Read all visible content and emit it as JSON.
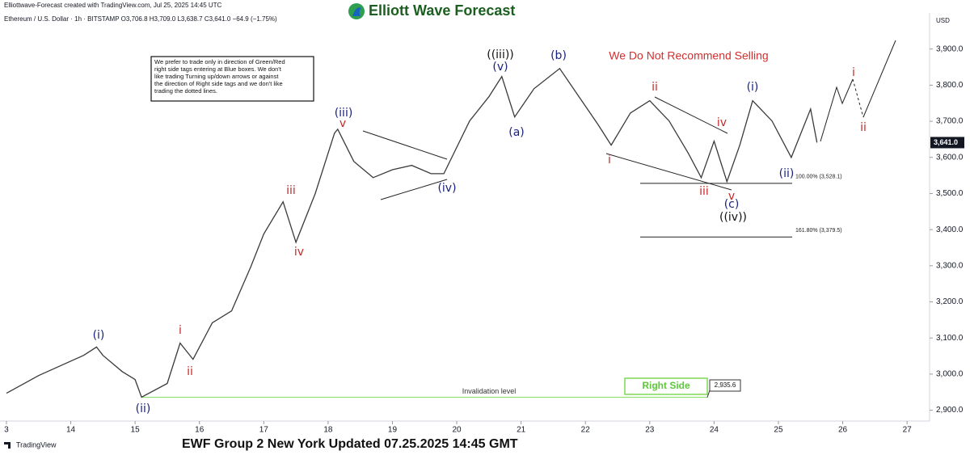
{
  "header": {
    "credit": "Elliottwave-Forecast created with TradingView.com, Jul 25, 2025 14:45 UTC",
    "symbol": "Ethereum / U.S. Dollar · 1h · BITSTAMP  O3,706.8 H3,709.0 L3,638.7 C3,641.0 −64.9 (−1.75%)",
    "logo": "Elliott Wave Forecast"
  },
  "note": [
    "We prefer to trade only in direction of Green/Red",
    "right side tags entering at Blue boxes. We don't",
    "like trading Turning up/down arrows or against",
    "the direction of Right side tags and we don't like",
    "trading the dotted lines."
  ],
  "warning": "We Do Not Recommend Selling",
  "right_side": "Right Side",
  "footer": "EWF Group 2 New York Updated 07.25.2025 14:45 GMT",
  "brand": "TradingView",
  "chart_data": {
    "type": "line",
    "color": "#3a3a3a",
    "currency": "USD",
    "x": [
      13.0,
      13.5,
      14.2,
      14.4,
      14.5,
      14.8,
      15.0,
      15.1,
      15.5,
      15.7,
      15.9,
      16.2,
      16.5,
      16.8,
      17.0,
      17.3,
      17.5,
      17.8,
      18.1,
      18.15,
      18.4,
      18.7,
      19.0,
      19.3,
      19.6,
      19.8,
      20.2,
      20.5,
      20.7,
      20.9,
      21.2,
      21.6,
      21.9,
      22.2,
      22.4,
      22.7,
      23.0,
      23.3,
      23.6,
      23.8,
      24.0,
      24.2,
      24.4,
      24.6,
      24.9,
      25.2,
      25.5,
      25.6
    ],
    "values": [
      2947,
      2996,
      3052,
      3075,
      3052,
      3007,
      2985,
      2936,
      2974,
      3086,
      3041,
      3142,
      3175,
      3298,
      3388,
      3477,
      3365,
      3500,
      3667,
      3678,
      3589,
      3544,
      3566,
      3578,
      3555,
      3555,
      3701,
      3768,
      3824,
      3712,
      3790,
      3846,
      3768,
      3690,
      3634,
      3723,
      3757,
      3701,
      3611,
      3544,
      3645,
      3533,
      3634,
      3757,
      3701,
      3600,
      3734,
      3641
    ],
    "xlim": [
      12.9,
      27.35
    ],
    "xticks": [
      {
        "value": 13,
        "label": "3"
      },
      14,
      15,
      16,
      17,
      18,
      19,
      20,
      21,
      22,
      23,
      24,
      25,
      26,
      27
    ],
    "ylim": [
      2870,
      4000
    ],
    "yticks": [
      {
        "value": 2900,
        "label": "2,900.0"
      },
      {
        "value": 3000,
        "label": "3,000.0"
      },
      {
        "value": 3100,
        "label": "3,100.0"
      },
      {
        "value": 3200,
        "label": "3,200.0"
      },
      {
        "value": 3300,
        "label": "3,300.0"
      },
      {
        "value": 3400,
        "label": "3,400.0"
      },
      {
        "value": 3500,
        "label": "3,500.0"
      },
      {
        "value": 3600,
        "label": "3,600.0"
      },
      {
        "value": 3700,
        "label": "3,700.0"
      },
      {
        "value": 3800,
        "label": "3,800.0"
      },
      {
        "value": 3900,
        "label": "3,900.0"
      }
    ],
    "last_price": {
      "value": 3641.0,
      "label": "3,641.0"
    },
    "levels": [
      {
        "value": 3528.1,
        "label": "100.00% (3,528.1)"
      },
      {
        "value": 3379.5,
        "label": "161.80% (3,379.5)"
      }
    ],
    "invalidation": {
      "value": 2935.6,
      "label": "2,935.6",
      "name": "Invalidation level",
      "color": "#7ed957"
    },
    "annotations": [
      {
        "text": "(i)",
        "color": "#1a237e"
      },
      {
        "text": "(ii)",
        "color": "#1a237e"
      },
      {
        "text": "i",
        "color": "#c62828"
      },
      {
        "text": "ii",
        "color": "#c62828"
      },
      {
        "text": "iii",
        "color": "#c62828"
      },
      {
        "text": "iv",
        "color": "#c62828"
      },
      {
        "text": "(iii)",
        "color": "#1a237e"
      },
      {
        "text": "v",
        "color": "#c62828"
      },
      {
        "text": "(iv)",
        "color": "#1a237e"
      },
      {
        "text": "((iii))",
        "color": "#111111"
      },
      {
        "text": "(v)",
        "color": "#1a237e"
      },
      {
        "text": "(a)",
        "color": "#1a237e"
      },
      {
        "text": "(b)",
        "color": "#1a237e"
      },
      {
        "text": "ii",
        "color": "#c62828"
      },
      {
        "text": "i",
        "color": "#c62828"
      },
      {
        "text": "iii",
        "color": "#c62828"
      },
      {
        "text": "iv",
        "color": "#c62828"
      },
      {
        "text": "v",
        "color": "#c62828"
      },
      {
        "text": "(c)",
        "color": "#1a237e"
      },
      {
        "text": "((iv))",
        "color": "#111111"
      },
      {
        "text": "(i)",
        "color": "#1a237e"
      },
      {
        "text": "(ii)",
        "color": "#1a237e"
      },
      {
        "text": "i",
        "color": "#c62828"
      },
      {
        "text": "ii",
        "color": "#c62828"
      }
    ]
  }
}
